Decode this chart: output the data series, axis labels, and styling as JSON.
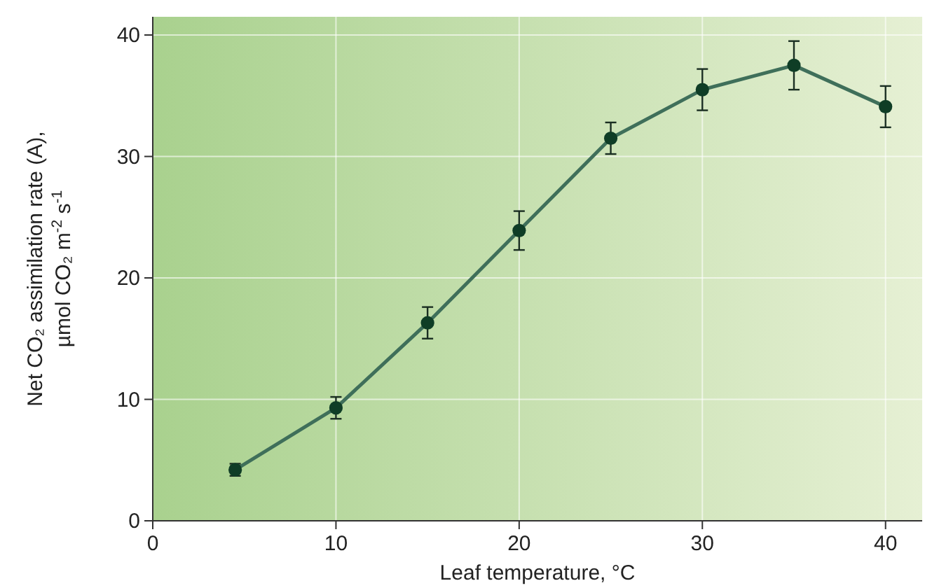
{
  "chart_data": {
    "type": "line",
    "xlabel": "Leaf temperature, °C",
    "ylabel": "Net CO₂ assimilation rate (A),\nµmol CO₂ m$^{-2}$ s$^{-1}$",
    "x": [
      4.5,
      10,
      15,
      20,
      25,
      30,
      35,
      40
    ],
    "series": [
      {
        "color": "#3f6f5a",
        "values": [
          4.2,
          9.3,
          16.3,
          23.9,
          31.5,
          35.5,
          37.5,
          34.1
        ],
        "errors": [
          0.5,
          0.9,
          1.3,
          1.6,
          1.3,
          1.7,
          2,
          1.7
        ]
      }
    ],
    "xlim": [
      0,
      42
    ],
    "xticks": [
      0,
      10,
      20,
      30,
      40
    ],
    "ylim": [
      0,
      41.5
    ],
    "yticks": [
      0,
      10,
      20,
      30,
      40
    ],
    "grid": true,
    "marker": "circle",
    "line_style": "solid"
  }
}
